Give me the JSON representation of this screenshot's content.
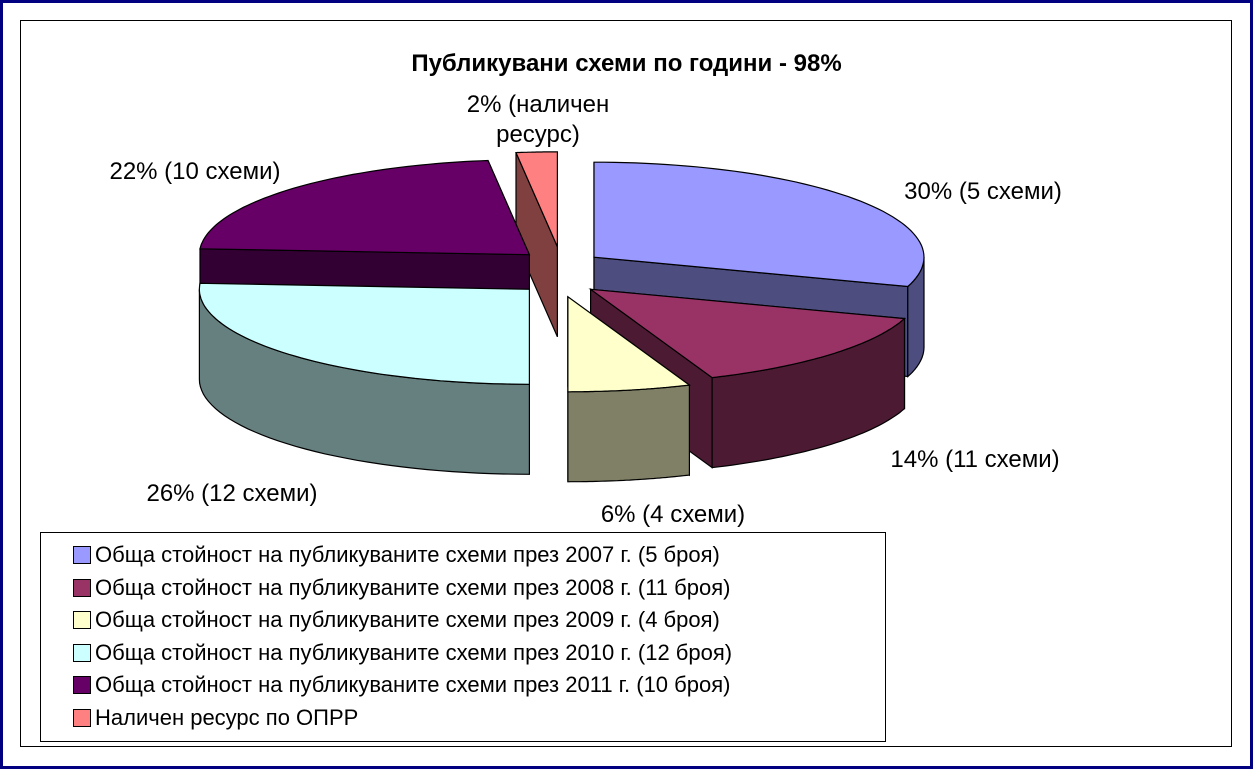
{
  "chart_data": {
    "type": "pie",
    "title": "Публикувани схеми по години - 98%",
    "labels": [
      "Обща стойност на публикуваните схеми през 2007 г. (5 броя)",
      "Обща стойност на публикуваните схеми през 2008 г. (11 броя)",
      "Обща стойност на публикуваните схеми през 2009 г. (4 броя)",
      "Обща стойност на публикуваните схеми през 2010 г. (12 броя)",
      "Обща стойност на публикуваните схеми през 2011 г. (10 броя)",
      "Наличен ресурс по ОПРР"
    ],
    "values": [
      30,
      14,
      6,
      26,
      22,
      2
    ],
    "value_labels": [
      "30% (5 схеми)",
      "14% (11 схеми)",
      "6% (4 схеми)",
      "26% (12 схеми)",
      "22% (10 схеми)",
      "2% (наличен ресурс)"
    ],
    "colors": [
      "#9999ff",
      "#993366",
      "#ffffcc",
      "#ccffff",
      "#660066",
      "#ff8080"
    ],
    "legend": "bottom-left"
  }
}
